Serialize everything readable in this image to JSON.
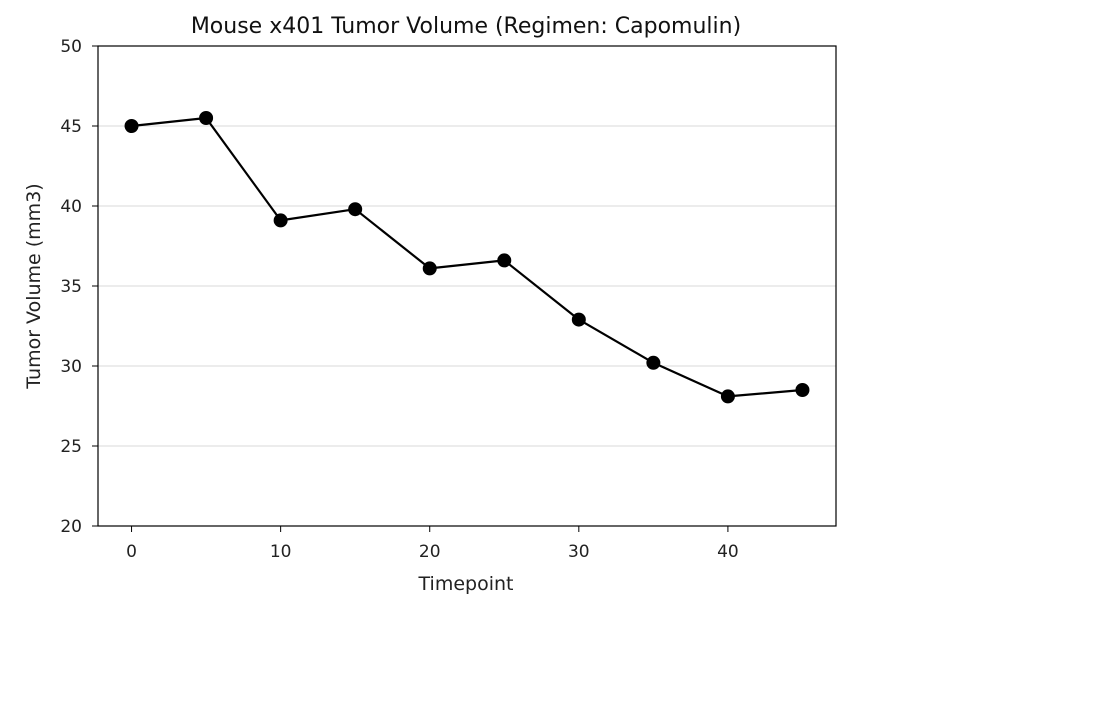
{
  "chart_data": {
    "type": "line",
    "title": "Mouse x401 Tumor Volume (Regimen: Capomulin)",
    "xlabel": "Timepoint",
    "ylabel": "Tumor Volume (mm3)",
    "xlim": [
      -2.25,
      47.25
    ],
    "ylim": [
      20,
      50
    ],
    "x_ticks": [
      0,
      10,
      20,
      30,
      40
    ],
    "y_ticks": [
      20,
      25,
      30,
      35,
      40,
      45,
      50
    ],
    "grid": "horizontal",
    "series": [
      {
        "x": [
          0,
          5,
          10,
          15,
          20,
          25,
          30,
          35,
          40,
          45
        ],
        "values": [
          45.0,
          45.5,
          39.1,
          39.8,
          36.1,
          36.6,
          32.9,
          30.2,
          28.1,
          28.5
        ],
        "color": "#000000",
        "marker": "circle"
      }
    ]
  }
}
